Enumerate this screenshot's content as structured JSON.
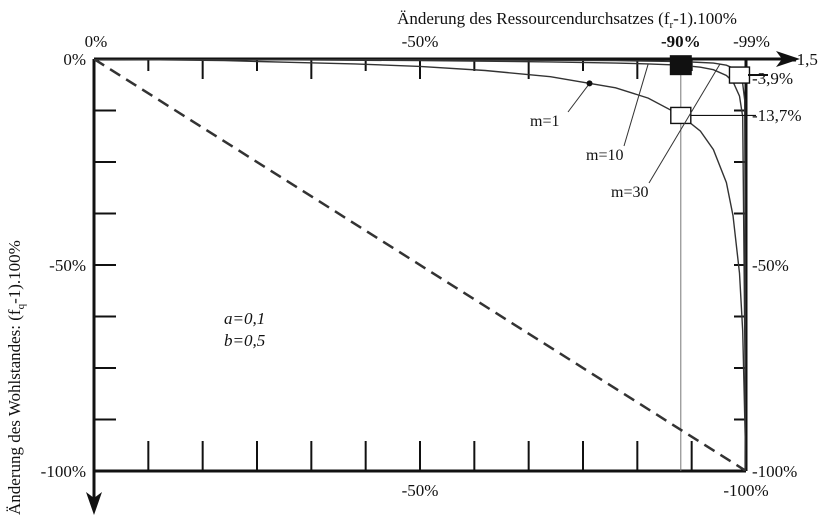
{
  "chart_data": {
    "type": "line",
    "x_axis_title": {
      "main": "Änderung des Ressourcendurchsatzes (f",
      "sub": "r",
      "tail": "-1).100%"
    },
    "y_axis_title": {
      "main": "Änderung des Wohlstandes: (f",
      "sub": "q",
      "tail": "-1).100%"
    },
    "xlim": [
      0,
      -100
    ],
    "ylim": [
      0,
      -100
    ],
    "x_ticks_top": [
      {
        "value": 0,
        "label": "0%"
      },
      {
        "value": -50,
        "label": "-50%"
      },
      {
        "value": -90,
        "label": "-90%"
      },
      {
        "value": -99,
        "label": "-99%"
      }
    ],
    "x_ticks_bottom": [
      {
        "value": -50,
        "label": "-50%"
      },
      {
        "value": -100,
        "label": "-100%"
      }
    ],
    "y_ticks_left": [
      {
        "value": 0,
        "label": "0%"
      },
      {
        "value": -50,
        "label": "-50%"
      },
      {
        "value": -100,
        "label": "-100%"
      }
    ],
    "y_ticks_right": [
      {
        "value": -1.5,
        "label": "-1,5"
      },
      {
        "value": -3.9,
        "label": "-3,9%"
      },
      {
        "value": -13.7,
        "label": "-13,7%"
      },
      {
        "value": -50,
        "label": "-50%"
      },
      {
        "value": -100,
        "label": "-100%"
      }
    ],
    "params": [
      "a=0,1",
      "b=0,5"
    ],
    "series": [
      {
        "label": "m=1",
        "style": "solid",
        "x": [
          0,
          -10,
          -20,
          -30,
          -40,
          -50,
          -60,
          -70,
          -80,
          -85,
          -90,
          -93,
          -95,
          -97,
          -98,
          -99,
          -99.5,
          -100
        ],
        "y": [
          0,
          -0.2,
          -0.4,
          -0.8,
          -1.2,
          -1.8,
          -2.8,
          -4.3,
          -7,
          -9.5,
          -13.7,
          -17.5,
          -22,
          -30,
          -38,
          -52,
          -66,
          -100
        ]
      },
      {
        "label": "m=10",
        "style": "solid",
        "x": [
          0,
          -30,
          -50,
          -70,
          -80,
          -85,
          -90,
          -93,
          -95,
          -97,
          -98,
          -99,
          -99.5,
          -100
        ],
        "y": [
          0,
          -0.2,
          -0.4,
          -0.7,
          -1,
          -1.2,
          -1.5,
          -2,
          -2.6,
          -4,
          -5.5,
          -9,
          -14,
          -100
        ]
      },
      {
        "label": "m=30",
        "style": "solid",
        "x": [
          0,
          -50,
          -80,
          -90,
          -95,
          -97,
          -98,
          -99,
          -99.5,
          -99.8,
          -100
        ],
        "y": [
          0,
          -0.2,
          -0.4,
          -0.6,
          -1,
          -1.5,
          -2.2,
          -3.9,
          -6,
          -10,
          -100
        ]
      },
      {
        "label": "",
        "style": "dashed",
        "x": [
          0,
          -100
        ],
        "y": [
          0,
          -100
        ]
      }
    ],
    "markers": [
      {
        "kind": "box-outline",
        "x": -90,
        "y": -13.7
      },
      {
        "kind": "box-filled",
        "x": -90,
        "y": -1.5
      },
      {
        "kind": "box-outline",
        "x": -99,
        "y": -3.9
      }
    ],
    "reference_vline_x": -90
  }
}
